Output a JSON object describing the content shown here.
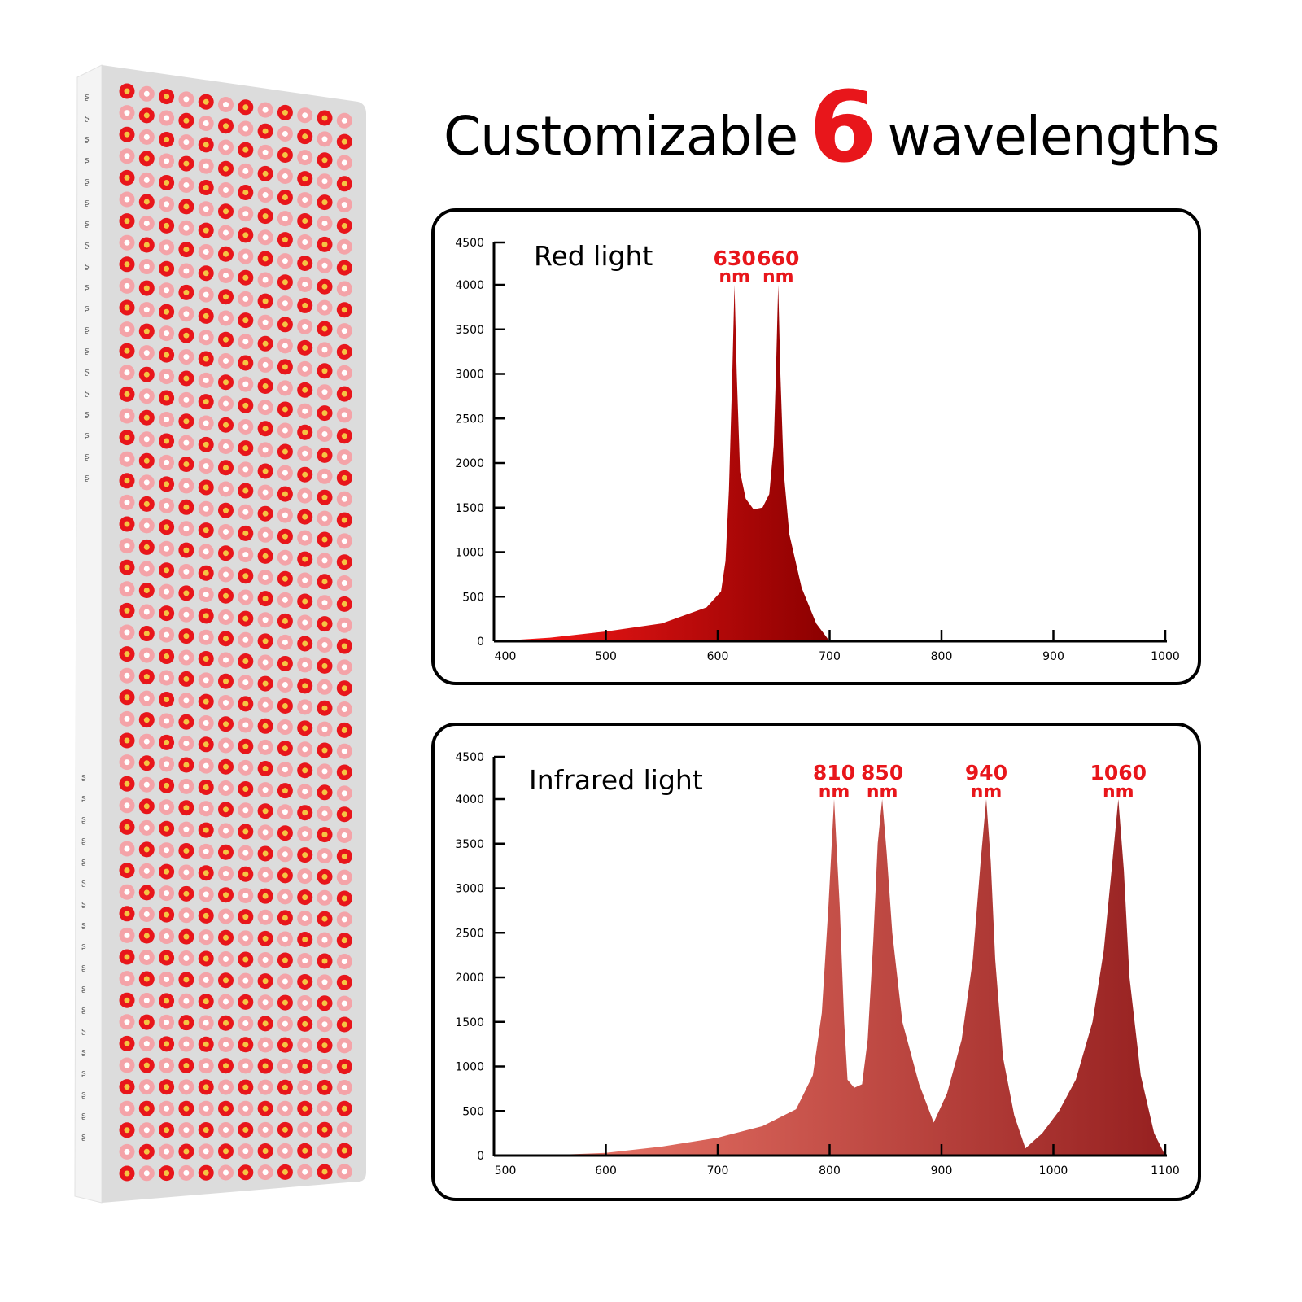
{
  "headline": {
    "prefix": "Customizable",
    "number": "6",
    "suffix": "wavelengths",
    "number_color": "#e8161b"
  },
  "product": {
    "name": "LED panel",
    "led_columns": 12,
    "led_rows": 51,
    "led_color": "#e8161b"
  },
  "chart_data": [
    {
      "type": "area",
      "title": "Red light",
      "xlabel": "",
      "ylabel": "",
      "xlim": [
        400,
        1000
      ],
      "ylim": [
        0,
        4500
      ],
      "xticks": [
        400,
        500,
        600,
        700,
        800,
        900,
        1000
      ],
      "yticks": [
        0,
        500,
        1000,
        1500,
        2000,
        2500,
        3000,
        3500,
        4000,
        4500
      ],
      "grid": false,
      "peak_labels": [
        {
          "value": "630",
          "unit": "nm",
          "x": 615
        },
        {
          "value": "660",
          "unit": "nm",
          "x": 654
        }
      ],
      "gradient": [
        "#ff1a1a",
        "#8b0000"
      ],
      "series": [
        {
          "x": [
            400,
            450,
            500,
            550,
            590,
            603,
            607,
            610,
            613,
            615,
            617,
            620,
            625,
            632,
            640,
            646,
            650,
            652,
            654,
            656,
            659,
            664,
            675,
            688,
            700
          ],
          "y": [
            0,
            40,
            110,
            200,
            380,
            560,
            900,
            1700,
            3000,
            4000,
            3000,
            1900,
            1600,
            1480,
            1500,
            1650,
            2200,
            3000,
            4000,
            3000,
            1900,
            1200,
            600,
            200,
            0
          ]
        }
      ]
    },
    {
      "type": "area",
      "title": "Infrared light",
      "xlabel": "",
      "ylabel": "",
      "xlim": [
        500,
        1100
      ],
      "ylim": [
        0,
        4500
      ],
      "xticks": [
        500,
        600,
        700,
        800,
        900,
        1000,
        1100
      ],
      "yticks": [
        0,
        500,
        1000,
        1500,
        2000,
        2500,
        3000,
        3500,
        4000,
        4500
      ],
      "grid": false,
      "peak_labels": [
        {
          "value": "810",
          "unit": "nm",
          "x": 804
        },
        {
          "value": "850",
          "unit": "nm",
          "x": 847
        },
        {
          "value": "940",
          "unit": "nm",
          "x": 940
        },
        {
          "value": "1060",
          "unit": "nm",
          "x": 1058
        }
      ],
      "gradient": [
        "#ee7a6c",
        "#962020"
      ],
      "series": [
        {
          "x": [
            540,
            600,
            650,
            700,
            740,
            770,
            785,
            793,
            799,
            804,
            809,
            813,
            816,
            822,
            829,
            834,
            839,
            843,
            847,
            851,
            856,
            865,
            880,
            893,
            905,
            918,
            928,
            935,
            940,
            944,
            948,
            955,
            965,
            975,
            990,
            1005,
            1020,
            1035,
            1045,
            1052,
            1058,
            1063,
            1068,
            1078,
            1090,
            1100
          ],
          "y": [
            0,
            30,
            100,
            200,
            330,
            520,
            900,
            1600,
            2800,
            4000,
            2800,
            1500,
            850,
            760,
            800,
            1300,
            2400,
            3500,
            4000,
            3400,
            2500,
            1500,
            800,
            370,
            700,
            1300,
            2200,
            3300,
            4000,
            3300,
            2200,
            1100,
            450,
            80,
            250,
            500,
            850,
            1500,
            2300,
            3200,
            4000,
            3200,
            2000,
            900,
            250,
            0
          ]
        }
      ]
    }
  ]
}
